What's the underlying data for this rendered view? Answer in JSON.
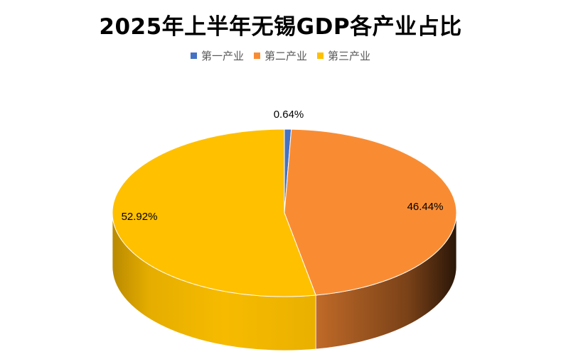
{
  "chart_data": {
    "type": "pie",
    "title": "2025年上半年无锡GDP各产业占比",
    "legend_position": "top",
    "labels": [
      "第一产业",
      "第二产业",
      "第三产业"
    ],
    "values": [
      0.64,
      46.44,
      52.92
    ],
    "data_labels": [
      "0.64%",
      "46.44%",
      "52.92%"
    ],
    "colors": [
      "#4472C4",
      "#F98C33",
      "#FFC000"
    ],
    "style": "3d"
  }
}
